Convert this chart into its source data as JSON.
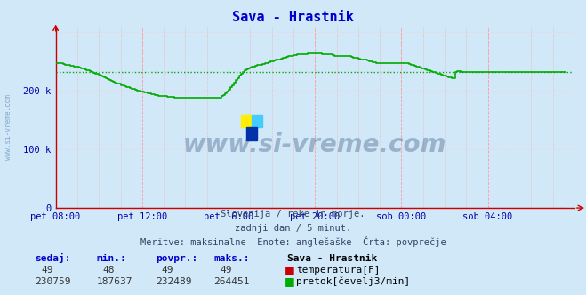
{
  "title": "Sava - Hrastnik",
  "title_color": "#0000cc",
  "bg_color": "#d0e8f8",
  "plot_bg_color": "#d0e8f8",
  "ylim": [
    0,
    310000
  ],
  "xlim": [
    0,
    288
  ],
  "xtick_labels": [
    "pet 08:00",
    "pet 12:00",
    "pet 16:00",
    "pet 20:00",
    "sob 00:00",
    "sob 04:00"
  ],
  "xtick_positions": [
    0,
    48,
    96,
    144,
    192,
    240
  ],
  "pretok_avg": 232489,
  "temp_color": "#cc0000",
  "pretok_color": "#00aa00",
  "grid_color_v": "#ff9999",
  "grid_color_h": "#ffcccc",
  "watermark": "www.si-vreme.com",
  "subtitle1": "Slovenija / reke in morje.",
  "subtitle2": "zadnji dan / 5 minut.",
  "subtitle3": "Meritve: maksimalne  Enote: anglešaške  Črta: povprečje",
  "legend_title": "Sava - Hrastnik",
  "legend_temp": "temperatura[F]",
  "legend_pretok": "pretok[čevelj3/min]",
  "stats_headers": [
    "sedaj:",
    "min.:",
    "povpr.:",
    "maks.:"
  ],
  "temp_stats": [
    "49",
    "48",
    "49",
    "49"
  ],
  "pretok_stats": [
    "230759",
    "187637",
    "232489",
    "264451"
  ],
  "sidebar_text": "www.si-vreme.com",
  "pretok_data": [
    248000,
    248000,
    247000,
    247000,
    246000,
    245000,
    245000,
    244000,
    243000,
    243000,
    242000,
    241000,
    241000,
    240000,
    239000,
    238000,
    237000,
    236000,
    235000,
    234000,
    233000,
    231000,
    230000,
    229000,
    228000,
    226000,
    225000,
    223000,
    222000,
    220000,
    219000,
    217000,
    216000,
    214000,
    213000,
    212000,
    210000,
    209000,
    208000,
    207000,
    206000,
    205000,
    204000,
    203000,
    202000,
    201000,
    200000,
    199000,
    199000,
    198000,
    197000,
    196000,
    196000,
    195000,
    194000,
    193000,
    193000,
    192000,
    192000,
    191000,
    191000,
    191000,
    190000,
    190000,
    190000,
    190000,
    189000,
    189000,
    189000,
    189000,
    188000,
    188000,
    188000,
    188000,
    188000,
    188000,
    188000,
    188000,
    188000,
    188000,
    188000,
    188000,
    188000,
    188000,
    188000,
    188000,
    188000,
    188000,
    188000,
    188000,
    188000,
    189000,
    191000,
    193000,
    196000,
    199000,
    202000,
    206000,
    210000,
    214000,
    218000,
    222000,
    226000,
    229000,
    232000,
    235000,
    237000,
    239000,
    240000,
    241000,
    242000,
    243000,
    244000,
    244000,
    245000,
    246000,
    247000,
    248000,
    249000,
    250000,
    251000,
    252000,
    253000,
    254000,
    254000,
    255000,
    256000,
    257000,
    258000,
    259000,
    260000,
    260000,
    261000,
    261000,
    262000,
    262000,
    262000,
    263000,
    263000,
    263000,
    264000,
    264000,
    264000,
    264000,
    264000,
    264000,
    264000,
    264000,
    263000,
    263000,
    263000,
    263000,
    262000,
    262000,
    261000,
    260000,
    260000,
    260000,
    260000,
    260000,
    260000,
    260000,
    260000,
    259000,
    258000,
    257000,
    256000,
    256000,
    255000,
    254000,
    254000,
    254000,
    253000,
    252000,
    251000,
    250000,
    249000,
    249000,
    248000,
    248000,
    247000,
    247000,
    247000,
    247000,
    247000,
    247000,
    247000,
    247000,
    247000,
    247000,
    247000,
    247000,
    247000,
    247000,
    247000,
    247000,
    246000,
    245000,
    244000,
    243000,
    242000,
    241000,
    240000,
    239000,
    238000,
    237000,
    236000,
    235000,
    234000,
    233000,
    232000,
    231000,
    230000,
    229000,
    228000,
    227000,
    226000,
    225000,
    224000,
    223000,
    222000,
    222000,
    233000,
    234000,
    234000,
    233000,
    233000,
    233000,
    233000,
    233000,
    233000,
    233000,
    233000,
    233000,
    233000,
    233000,
    233000,
    233000,
    233000,
    233000,
    233000,
    233000,
    233000,
    233000,
    233000,
    233000,
    233000,
    233000,
    233000,
    233000,
    233000,
    233000,
    233000,
    233000,
    233000,
    233000,
    233000,
    233000,
    233000,
    233000,
    233000,
    233000,
    233000,
    233000,
    233000,
    233000,
    233000,
    233000,
    233000,
    233000,
    233000,
    233000,
    233000,
    233000,
    233000,
    233000,
    233000,
    233000,
    233000,
    233000,
    233000,
    233000,
    233000,
    233000
  ],
  "temp_data_value": 49
}
